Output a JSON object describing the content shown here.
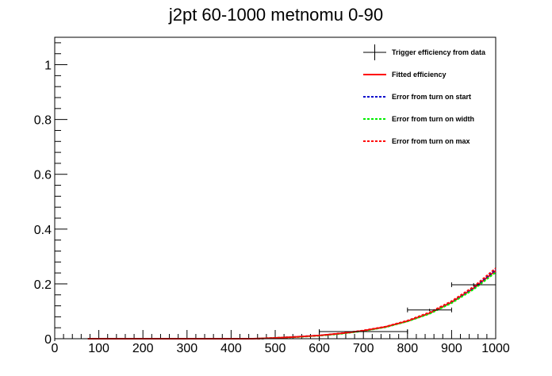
{
  "chart_data": {
    "type": "scatter",
    "title": "j2pt 60-1000 metnomu 0-90",
    "xlabel": "",
    "ylabel": "",
    "xlim": [
      0,
      1000
    ],
    "ylim": [
      0,
      1.1
    ],
    "x_ticks": [
      0,
      100,
      200,
      300,
      400,
      500,
      600,
      700,
      800,
      900,
      1000
    ],
    "y_ticks": [
      0,
      0.2,
      0.4,
      0.6,
      0.8,
      1
    ],
    "grid": false,
    "legend_position": "top-right",
    "series": [
      {
        "name": "Trigger efficiency from data",
        "kind": "errorbar",
        "color": "#000000",
        "points": [
          {
            "x": 60,
            "xlo": 0,
            "xhi": 600,
            "y": 0.0,
            "ylo": 0.0,
            "yhi": 0.0
          },
          {
            "x": 700,
            "xlo": 600,
            "xhi": 800,
            "y": 0.026,
            "ylo": 0.024,
            "yhi": 0.028
          },
          {
            "x": 850,
            "xlo": 800,
            "xhi": 900,
            "y": 0.105,
            "ylo": 0.101,
            "yhi": 0.109
          },
          {
            "x": 950,
            "xlo": 900,
            "xhi": 1000,
            "y": 0.197,
            "ylo": 0.191,
            "yhi": 0.203
          }
        ]
      },
      {
        "name": "Fitted efficiency",
        "kind": "line",
        "color": "#ff0000",
        "dash": "solid",
        "x": [
          75,
          450,
          500,
          550,
          600,
          650,
          700,
          750,
          800,
          850,
          900,
          950,
          1000
        ],
        "y": [
          0.0,
          0.0,
          0.003,
          0.007,
          0.012,
          0.019,
          0.029,
          0.043,
          0.064,
          0.093,
          0.133,
          0.184,
          0.248
        ]
      },
      {
        "name": "Error from turn on start",
        "kind": "line",
        "color": "#0000cc",
        "dash": "dotted",
        "x": [
          460,
          500,
          550,
          600,
          650,
          700,
          750,
          800,
          850,
          900,
          950,
          1000
        ],
        "y": [
          0.0,
          0.003,
          0.007,
          0.012,
          0.019,
          0.029,
          0.043,
          0.065,
          0.094,
          0.134,
          0.186,
          0.252
        ]
      },
      {
        "name": "Error from turn on width",
        "kind": "line",
        "color": "#00ee00",
        "dash": "dotted",
        "x": [
          460,
          500,
          550,
          600,
          650,
          700,
          750,
          800,
          850,
          900,
          950,
          1000
        ],
        "y": [
          0.0,
          0.003,
          0.006,
          0.011,
          0.018,
          0.028,
          0.042,
          0.063,
          0.091,
          0.13,
          0.18,
          0.242
        ]
      },
      {
        "name": "Error from turn on max",
        "kind": "line",
        "color": "#ff0000",
        "dash": "dotted",
        "x": [
          460,
          500,
          550,
          600,
          650,
          700,
          750,
          800,
          850,
          900,
          950,
          1000
        ],
        "y": [
          0.0,
          0.003,
          0.007,
          0.012,
          0.02,
          0.03,
          0.044,
          0.066,
          0.096,
          0.137,
          0.19,
          0.257
        ]
      }
    ]
  }
}
